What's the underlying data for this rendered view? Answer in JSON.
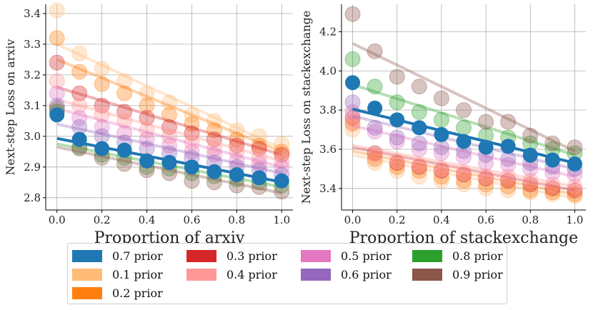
{
  "chart_data": [
    {
      "type": "scatter",
      "title": "",
      "xlabel": "Proportion of arxiv",
      "ylabel": "Next-step Loss on arxiv",
      "xlim": [
        -0.05,
        1.05
      ],
      "ylim": [
        2.76,
        3.43
      ],
      "xticks": [
        "0.0",
        "0.2",
        "0.4",
        "0.6",
        "0.8",
        "1.0"
      ],
      "xtick_values": [
        0,
        0.2,
        0.4,
        0.6,
        0.8,
        1.0
      ],
      "yticks": [
        "2.8",
        "2.9",
        "3.0",
        "3.1",
        "3.2",
        "3.3",
        "3.4"
      ],
      "ytick_values": [
        2.8,
        2.9,
        3.0,
        3.1,
        3.2,
        3.3,
        3.4
      ],
      "grid": true,
      "x": [
        0,
        0.1,
        0.2,
        0.3,
        0.4,
        0.5,
        0.6,
        0.7,
        0.8,
        0.9,
        1.0
      ],
      "series": [
        {
          "name": "0.7 prior",
          "color": "#1f77b4",
          "highlight": true,
          "values": [
            3.07,
            2.99,
            2.96,
            2.955,
            2.92,
            2.915,
            2.9,
            2.885,
            2.875,
            2.865,
            2.855
          ],
          "fit": [
            2.993,
            2.851
          ]
        },
        {
          "name": "0.1 prior",
          "color": "#ffbb78",
          "values": [
            3.41,
            3.27,
            3.22,
            3.18,
            3.14,
            3.11,
            3.07,
            3.05,
            3.02,
            3.0,
            2.975
          ],
          "fit": [
            3.3,
            2.96
          ]
        },
        {
          "name": "0.2 prior",
          "color": "#ff7f0e",
          "values": [
            3.32,
            3.21,
            3.17,
            3.14,
            3.1,
            3.07,
            3.04,
            3.02,
            2.99,
            2.97,
            2.95
          ],
          "fit": [
            3.25,
            2.95
          ]
        },
        {
          "name": "0.3 prior",
          "color": "#d62728",
          "values": [
            3.24,
            3.14,
            3.1,
            3.08,
            3.06,
            3.03,
            3.01,
            2.99,
            2.97,
            2.96,
            2.94
          ],
          "fit": [
            3.16,
            2.94
          ]
        },
        {
          "name": "0.4 prior",
          "color": "#ff9896",
          "values": [
            3.18,
            3.1,
            3.07,
            3.05,
            3.02,
            3.0,
            2.98,
            2.96,
            2.95,
            2.93,
            2.92
          ],
          "fit": [
            3.12,
            2.92
          ]
        },
        {
          "name": "0.5 prior",
          "color": "#e377c2",
          "values": [
            3.14,
            3.06,
            3.03,
            3.01,
            2.99,
            2.97,
            2.95,
            2.94,
            2.92,
            2.91,
            2.9
          ],
          "fit": [
            3.09,
            2.9
          ]
        },
        {
          "name": "0.6 prior",
          "color": "#9467bd",
          "values": [
            3.1,
            3.03,
            3.0,
            2.98,
            2.96,
            2.945,
            2.93,
            2.915,
            2.9,
            2.89,
            2.875
          ],
          "fit": [
            3.04,
            2.88
          ]
        },
        {
          "name": "0.8 prior",
          "color": "#2ca02c",
          "values": [
            3.08,
            2.965,
            2.94,
            2.93,
            2.9,
            2.895,
            2.88,
            2.87,
            2.86,
            2.85,
            2.84
          ],
          "fit": [
            2.975,
            2.835
          ]
        },
        {
          "name": "0.9 prior",
          "color": "#8c564b",
          "values": [
            3.09,
            2.96,
            2.93,
            2.91,
            2.89,
            2.88,
            2.855,
            2.85,
            2.84,
            2.835,
            2.82
          ],
          "fit": [
            2.965,
            2.815
          ]
        }
      ]
    },
    {
      "type": "scatter",
      "title": "",
      "xlabel": "Proportion of stackexchange",
      "ylabel": "Next-step Loss on stackexchange",
      "xlim": [
        -0.05,
        1.05
      ],
      "ylim": [
        3.29,
        4.34
      ],
      "xticks": [
        "0.0",
        "0.2",
        "0.4",
        "0.6",
        "0.8",
        "1.0"
      ],
      "xtick_values": [
        0,
        0.2,
        0.4,
        0.6,
        0.8,
        1.0
      ],
      "yticks": [
        "3.4",
        "3.6",
        "3.8",
        "4.0",
        "4.2"
      ],
      "ytick_values": [
        3.4,
        3.6,
        3.8,
        4.0,
        4.2
      ],
      "grid": true,
      "x": [
        0,
        0.1,
        0.2,
        0.3,
        0.4,
        0.5,
        0.6,
        0.7,
        0.8,
        0.9,
        1.0
      ],
      "series": [
        {
          "name": "0.7 prior",
          "color": "#1f77b4",
          "highlight": true,
          "values": [
            3.94,
            3.81,
            3.75,
            3.71,
            3.675,
            3.64,
            3.61,
            3.615,
            3.57,
            3.545,
            3.525
          ],
          "fit": [
            3.805,
            3.53
          ]
        },
        {
          "name": "0.1 prior",
          "color": "#ffbb78",
          "values": [
            3.7,
            3.53,
            3.49,
            3.46,
            3.44,
            3.42,
            3.4,
            3.39,
            3.38,
            3.37,
            3.36
          ],
          "fit": [
            3.57,
            3.35
          ]
        },
        {
          "name": "0.2 prior",
          "color": "#ff7f0e",
          "values": [
            3.73,
            3.55,
            3.51,
            3.49,
            3.46,
            3.44,
            3.42,
            3.41,
            3.39,
            3.38,
            3.37
          ],
          "fit": [
            3.59,
            3.37
          ]
        },
        {
          "name": "0.3 prior",
          "color": "#d62728",
          "values": [
            3.76,
            3.58,
            3.53,
            3.51,
            3.49,
            3.47,
            3.45,
            3.44,
            3.42,
            3.4,
            3.39
          ],
          "fit": [
            3.61,
            3.39
          ]
        },
        {
          "name": "0.4 prior",
          "color": "#ff9896",
          "values": [
            3.74,
            3.57,
            3.54,
            3.52,
            3.5,
            3.48,
            3.46,
            3.46,
            3.44,
            3.42,
            3.41
          ],
          "fit": [
            3.62,
            3.41
          ]
        },
        {
          "name": "0.5 prior",
          "color": "#e377c2",
          "values": [
            3.79,
            3.69,
            3.64,
            3.6,
            3.58,
            3.56,
            3.53,
            3.52,
            3.5,
            3.48,
            3.47
          ],
          "fit": [
            3.72,
            3.46
          ]
        },
        {
          "name": "0.6 prior",
          "color": "#9467bd",
          "values": [
            3.84,
            3.71,
            3.66,
            3.63,
            3.61,
            3.59,
            3.57,
            3.55,
            3.53,
            3.51,
            3.5
          ],
          "fit": [
            3.77,
            3.5
          ]
        },
        {
          "name": "0.8 prior",
          "color": "#2ca02c",
          "values": [
            4.06,
            3.92,
            3.84,
            3.79,
            3.75,
            3.71,
            3.67,
            3.66,
            3.63,
            3.6,
            3.58
          ],
          "fit": [
            3.93,
            3.57
          ]
        },
        {
          "name": "0.9 prior",
          "color": "#8c564b",
          "values": [
            4.29,
            4.1,
            3.97,
            3.92,
            3.86,
            3.8,
            3.74,
            3.74,
            3.67,
            3.63,
            3.61
          ],
          "fit": [
            4.14,
            3.59
          ]
        }
      ]
    }
  ],
  "legend": {
    "items": [
      {
        "label": "0.7 prior",
        "color": "#1f77b4"
      },
      {
        "label": "0.1 prior",
        "color": "#ffbb78"
      },
      {
        "label": "0.2 prior",
        "color": "#ff7f0e"
      },
      {
        "label": "0.3 prior",
        "color": "#d62728"
      },
      {
        "label": "0.4 prior",
        "color": "#ff9896"
      },
      {
        "label": "0.5 prior",
        "color": "#e377c2"
      },
      {
        "label": "0.6 prior",
        "color": "#9467bd"
      },
      {
        "label": "0.8 prior",
        "color": "#2ca02c"
      },
      {
        "label": "0.9 prior",
        "color": "#8c564b"
      }
    ]
  }
}
